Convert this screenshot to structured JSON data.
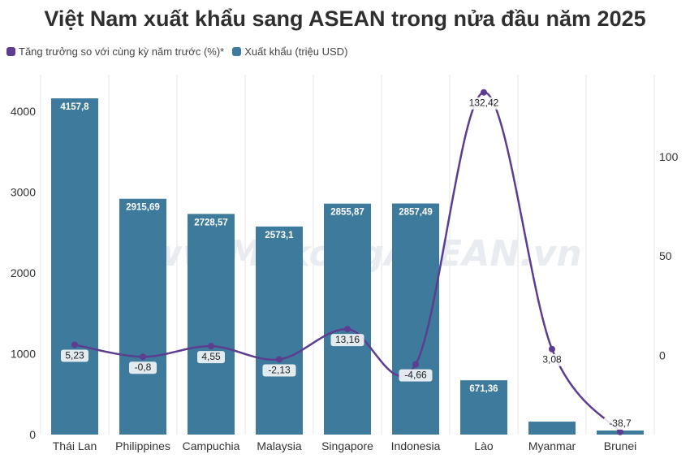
{
  "chart_data": {
    "type": "bar",
    "title": "Việt Nam xuất khẩu sang ASEAN trong nửa đầu năm 2025",
    "categories": [
      "Thái Lan",
      "Philippines",
      "Campuchia",
      "Malaysia",
      "Singapore",
      "Indonesia",
      "Lào",
      "Myanmar",
      "Brunei"
    ],
    "series": [
      {
        "name": "Xuất khẩu (triệu USD)",
        "kind": "bar",
        "axis": "left",
        "color": "#3d7a9c",
        "values": [
          4157.8,
          2915.69,
          2728.57,
          2573.1,
          2855.87,
          2857.49,
          671.36,
          160,
          50
        ],
        "labels": [
          "4157,8",
          "2915,69",
          "2728,57",
          "2573,1",
          "2855,87",
          "2857,49",
          "671,36",
          "",
          ""
        ]
      },
      {
        "name": "Tăng trưởng so với cùng kỳ năm trước (%)*",
        "kind": "line",
        "axis": "right",
        "color": "#5c3d8f",
        "values": [
          5.23,
          -0.8,
          4.55,
          -2.13,
          13.16,
          -4.66,
          132.42,
          3.08,
          -38.7
        ],
        "labels": [
          "5,23",
          "-0,8",
          "4,55",
          "-2,13",
          "13,16",
          "-4,66",
          "132,42",
          "3,08",
          "-38,7"
        ]
      }
    ],
    "y_left": {
      "ticks": [
        0,
        1000,
        2000,
        3000,
        4000
      ],
      "ticklabels": [
        "0",
        "1000",
        "2000",
        "3000",
        "4000"
      ],
      "ylim": [
        0,
        4450
      ]
    },
    "y_right": {
      "ticks": [
        0,
        50,
        100
      ],
      "ticklabels": [
        "0",
        "50",
        "100"
      ],
      "ylim": [
        -40,
        141.3
      ]
    },
    "grid": "vertical",
    "legend_position": "top-left",
    "watermark": "www.MekongASEAN.vn"
  }
}
